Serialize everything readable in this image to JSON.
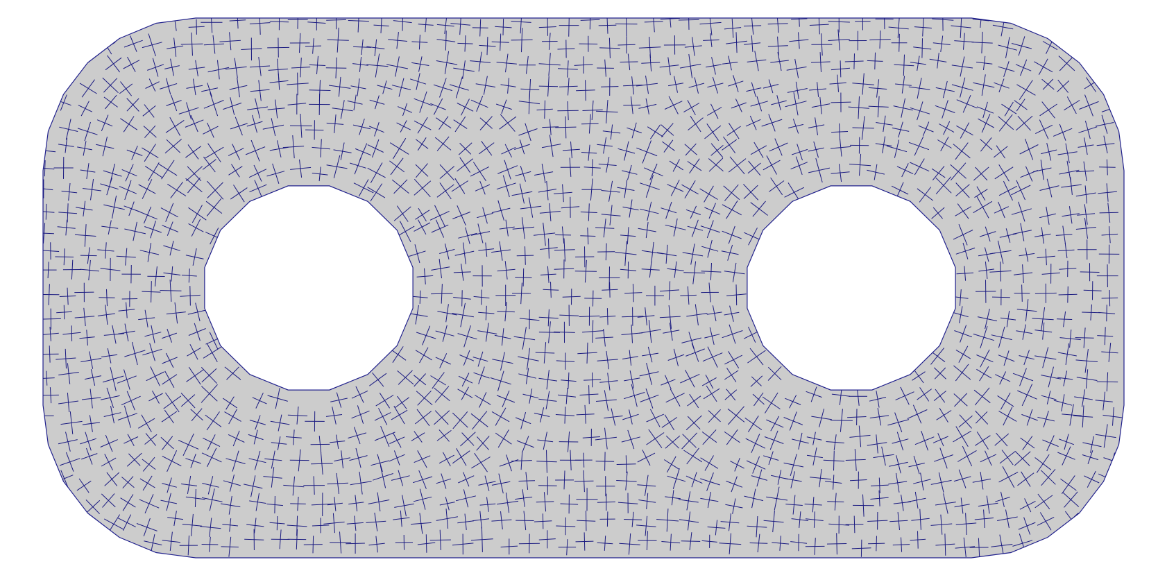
{
  "figure": {
    "subject": "cross-field",
    "colors": {
      "background": "#ffffff",
      "domain_fill": "#cccccc",
      "boundary_stroke": "#1f1f8c",
      "cross_stroke": "#1a1a80"
    },
    "holes": 2
  }
}
